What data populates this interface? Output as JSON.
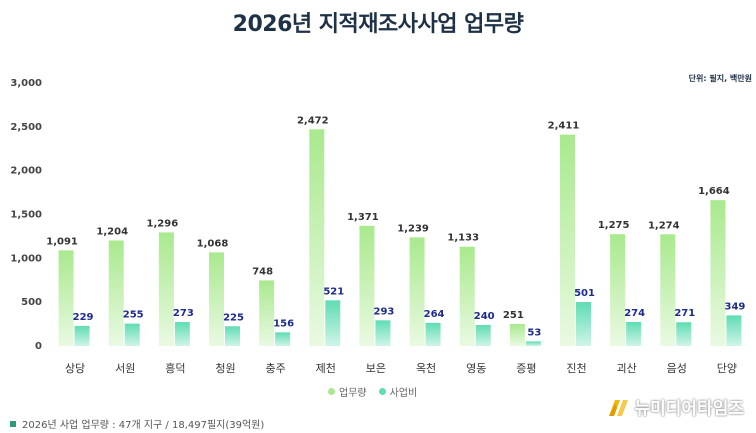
{
  "title": "2026년 지적재조사사업 업무량",
  "unit_note": "단위: 필지, 백만원",
  "footnote": "2026년 사업 업무량 : 47개 지구 / 18,497필지(39억원)",
  "brand": {
    "name": "뉴미디어타임즈",
    "icon": "brand-logo-icon"
  },
  "colors": {
    "volume": "#a9e98d",
    "budget": "#5fdcb3",
    "volume_label": "#333333",
    "budget_label": "#1c2b8f"
  },
  "chart_data": {
    "type": "bar",
    "categories": [
      "상당",
      "서원",
      "흥덕",
      "청원",
      "충주",
      "제천",
      "보은",
      "옥천",
      "영동",
      "증평",
      "진천",
      "괴산",
      "음성",
      "단양"
    ],
    "series": [
      {
        "name": "업무량",
        "values": [
          1091,
          1204,
          1296,
          1068,
          748,
          2472,
          1371,
          1239,
          1133,
          251,
          2411,
          1275,
          1274,
          1664
        ]
      },
      {
        "name": "사업비",
        "values": [
          229,
          255,
          273,
          225,
          156,
          521,
          293,
          264,
          240,
          53,
          501,
          274,
          271,
          349
        ]
      }
    ],
    "ylim": [
      0,
      3000
    ],
    "yticks": [
      0,
      500,
      1000,
      1500,
      2000,
      2500,
      3000
    ],
    "ytick_labels": [
      "0",
      "500",
      "1,000",
      "1,500",
      "2,000",
      "2,500",
      "3,000"
    ],
    "grid": false,
    "legend": "bottom-center"
  }
}
